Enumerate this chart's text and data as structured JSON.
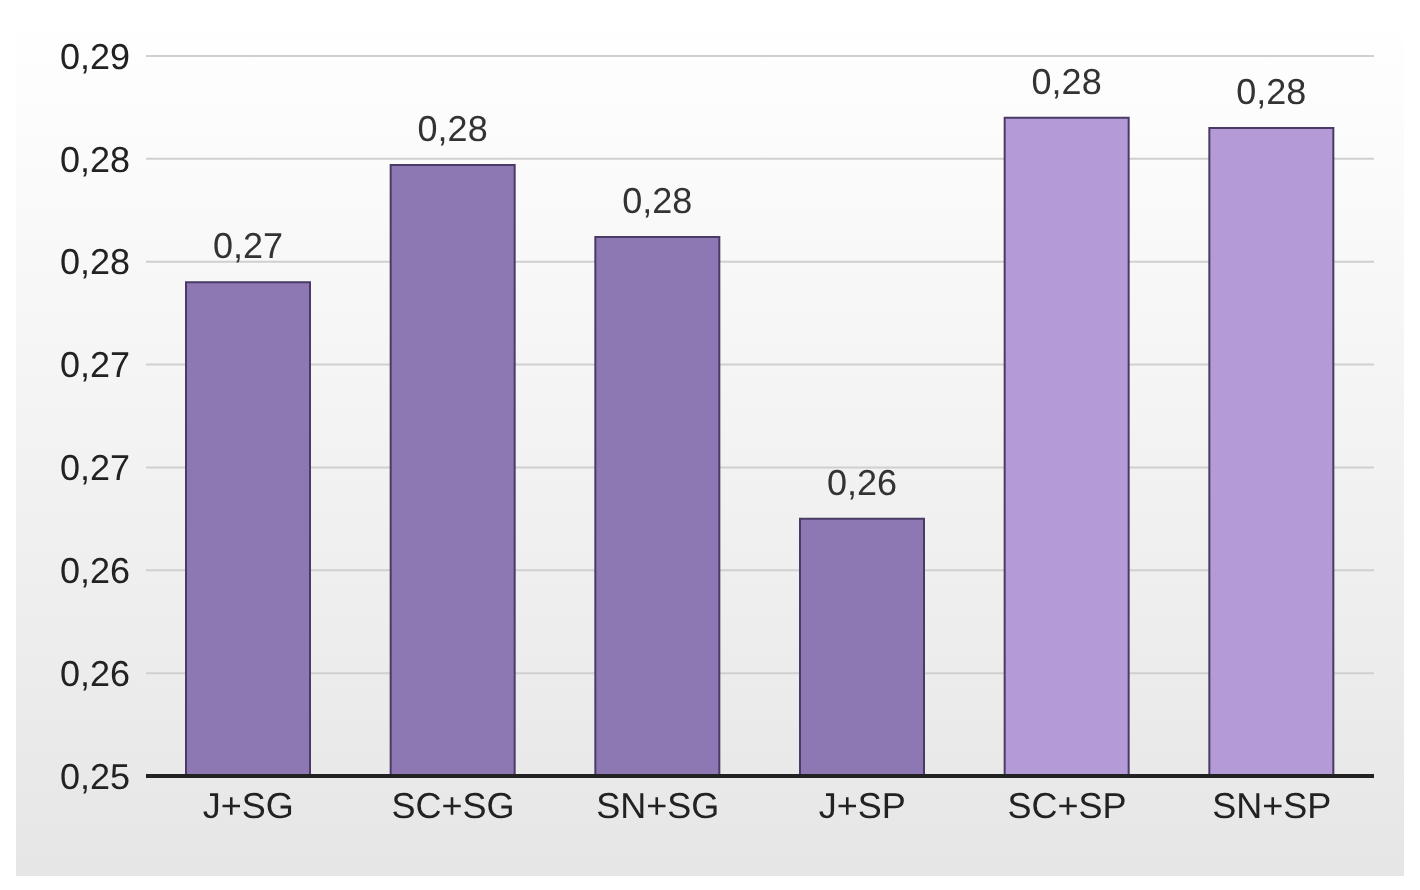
{
  "chart_data": {
    "type": "bar",
    "categories": [
      "J+SG",
      "SC+SG",
      "SN+SG",
      "J+SP",
      "SC+SP",
      "SN+SP"
    ],
    "values": [
      0.274,
      0.2797,
      0.2762,
      0.2625,
      0.282,
      0.2815
    ],
    "colors": [
      "#8e78b4",
      "#8e78b4",
      "#8e78b4",
      "#8e78b4",
      "#b49ad6",
      "#b49ad6"
    ],
    "value_labels": [
      "0,27",
      "0,28",
      "0,28",
      "0,26",
      "0,28",
      "0,28"
    ],
    "ylim": [
      0.25,
      0.285
    ],
    "yticks": [
      {
        "value": 0.25,
        "label": "0,25"
      },
      {
        "value": 0.255,
        "label": "0,26"
      },
      {
        "value": 0.26,
        "label": "0,26"
      },
      {
        "value": 0.265,
        "label": "0,27"
      },
      {
        "value": 0.27,
        "label": "0,27"
      },
      {
        "value": 0.275,
        "label": "0,28"
      },
      {
        "value": 0.28,
        "label": "0,28"
      },
      {
        "value": 0.285,
        "label": "0,29"
      }
    ],
    "grid": "y"
  }
}
